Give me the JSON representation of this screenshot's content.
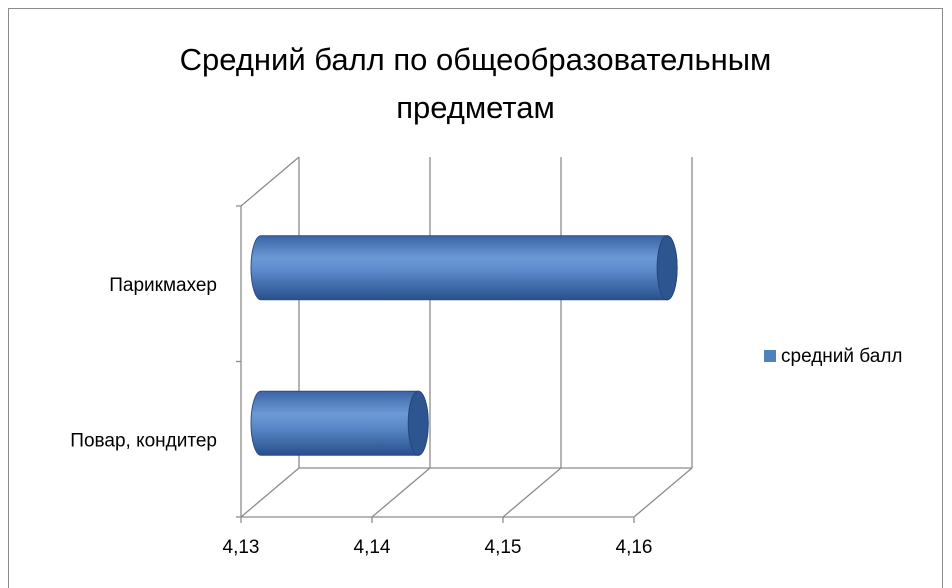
{
  "chart_data": {
    "type": "bar",
    "orientation": "horizontal",
    "style": "3d-cylinder",
    "title": "Средний балл по общеобразовательным предметам",
    "title_lines": [
      "Средний балл по общеобразовательным",
      "предметам"
    ],
    "categories": [
      "Парикмахер",
      "Повар, кондитер"
    ],
    "series": [
      {
        "name": "средний балл",
        "values": [
          4.161,
          4.142
        ],
        "color": "#4f81bd"
      }
    ],
    "xlim": [
      4.13,
      4.16
    ],
    "x_ticks": [
      {
        "value": 4.13,
        "label": "4,13"
      },
      {
        "value": 4.14,
        "label": "4,14"
      },
      {
        "value": 4.15,
        "label": "4,15"
      },
      {
        "value": 4.16,
        "label": "4,16"
      }
    ],
    "grid": true,
    "legend": {
      "position": "right",
      "label": "средний балл",
      "color": "#4f81bd"
    },
    "xlabel": "",
    "ylabel": ""
  }
}
